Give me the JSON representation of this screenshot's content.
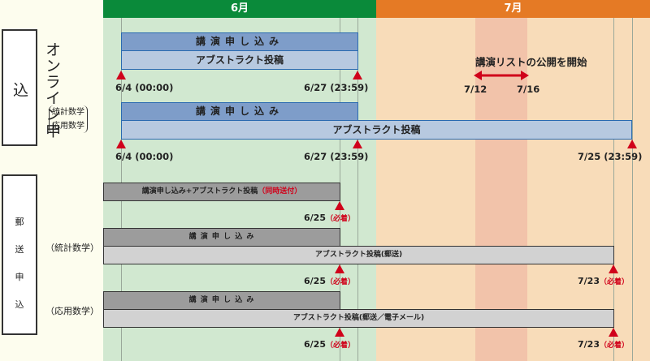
{
  "months": {
    "june": "6月",
    "july": "7月"
  },
  "colors": {
    "june_header": "#0a8a3a",
    "july_header": "#e57a25",
    "june_bg": "#d1e8d0",
    "july_bg": "#f8dcb9",
    "highlight_band": "#f2c3aa",
    "deadline_marker": "#d0021b"
  },
  "online": {
    "title": "オンライン申込",
    "group_label": [
      "統計数学",
      "応用数学"
    ],
    "row1": {
      "talk": "講演申し込み",
      "abstract": "アブストラクト投稿",
      "start": "6/4 (00:00)",
      "end": "6/27 (23:59)"
    },
    "row2": {
      "talk": "講演申し込み",
      "abstract": "アブストラクト投稿",
      "start": "6/4 (00:00)",
      "talk_end": "6/27 (23:59)",
      "abstract_end": "7/25 (23:59)"
    }
  },
  "announcement": {
    "text": "講演リストの公開を開始",
    "from": "7/12",
    "to": "7/16"
  },
  "mail": {
    "title": [
      "郵",
      "送",
      "申",
      "込"
    ],
    "row1": {
      "label": "講演申し込み+アブストラクト投稿",
      "note": "（同時送付）",
      "deadline": "6/25",
      "deadline_note": "（必着）"
    },
    "stat": {
      "group": "（統計数学）",
      "talk": "講 演 申 し 込 み",
      "abstract": "アブストラクト投稿(郵送)",
      "talk_deadline": "6/25",
      "abstract_deadline": "7/23",
      "note": "（必着）"
    },
    "applied": {
      "group": "（応用数学）",
      "talk": "講 演 申 し 込 み",
      "abstract": "アブストラクト投稿(郵送／電子メール)",
      "talk_deadline": "6/25",
      "abstract_deadline": "7/23",
      "note": "（必着）"
    }
  }
}
